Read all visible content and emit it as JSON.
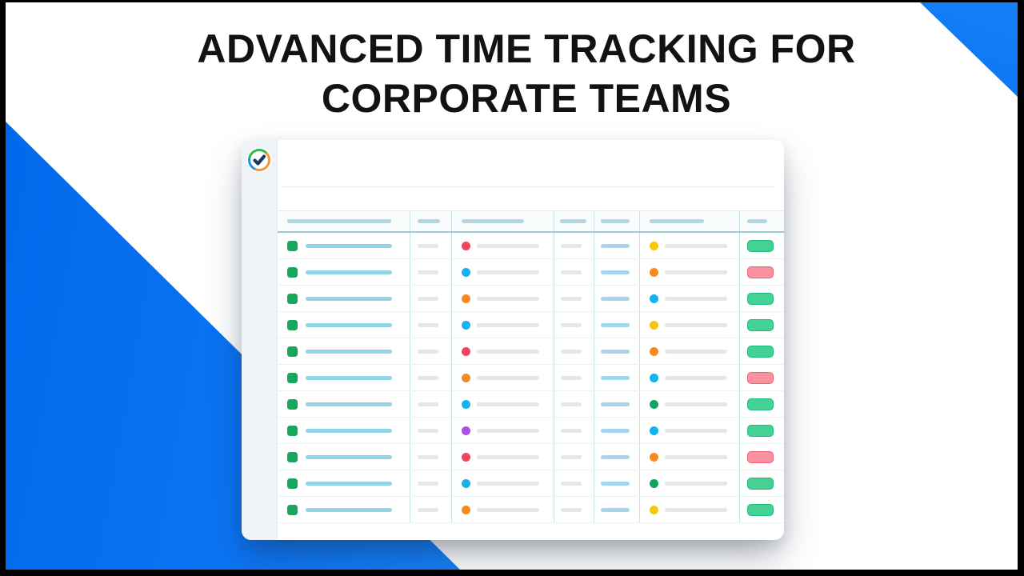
{
  "hero": {
    "title_line1": "ADVANCED TIME TRACKING FOR",
    "title_line2": "CORPORATE TEAMS",
    "text_color": "#121212"
  },
  "background": {
    "canvas": "#ffffff",
    "frame": "#000000",
    "brand_blue": "#0b73f2",
    "brand_blue_light": "#1680f8"
  },
  "logo": {
    "icon": "tmetric-check-logo",
    "ring_green": "#33b94a",
    "ring_blue": "#1e98d7",
    "ring_orange": "#f79438",
    "check": "#1d3a66"
  },
  "app": {
    "palette": {
      "sidebar_bg": "#eef3f7",
      "card_bg": "#ffffff",
      "divider": "#e4e9ec",
      "header_bar": "#b7d4df",
      "header_underline": "#9ccad2",
      "grid_line": "#c9dfe8",
      "row_line": "#eef1f4",
      "skeleton_gray": "#e3e7ea",
      "skeleton_teal": "#8fd5e4",
      "skeleton_blue": "#a5d4ec",
      "project_green": "#16a75c",
      "dots": {
        "red": "#f1455f",
        "cyan": "#14b2ef",
        "orange": "#f68a1f",
        "yellow": "#f8c70d",
        "green": "#11a45f",
        "purple": "#ad4fe3"
      },
      "status": {
        "green": {
          "fill": "#45d194",
          "border": "#1cb97d"
        },
        "pink": {
          "fill": "#f9919f",
          "border": "#ef6175"
        }
      }
    },
    "table": {
      "columns": [
        "project",
        "duration",
        "status-1",
        "tag",
        "time",
        "status-2",
        "action"
      ],
      "rows": [
        {
          "dot1": "red",
          "dot2": "yellow",
          "action": "green"
        },
        {
          "dot1": "cyan",
          "dot2": "orange",
          "action": "pink"
        },
        {
          "dot1": "orange",
          "dot2": "cyan",
          "action": "green"
        },
        {
          "dot1": "cyan",
          "dot2": "yellow",
          "action": "green"
        },
        {
          "dot1": "red",
          "dot2": "orange",
          "action": "green"
        },
        {
          "dot1": "orange",
          "dot2": "cyan",
          "action": "pink"
        },
        {
          "dot1": "cyan",
          "dot2": "green",
          "action": "green"
        },
        {
          "dot1": "purple",
          "dot2": "cyan",
          "action": "green"
        },
        {
          "dot1": "red",
          "dot2": "orange",
          "action": "pink"
        },
        {
          "dot1": "cyan",
          "dot2": "green",
          "action": "green"
        },
        {
          "dot1": "orange",
          "dot2": "yellow",
          "action": "green"
        }
      ]
    }
  }
}
